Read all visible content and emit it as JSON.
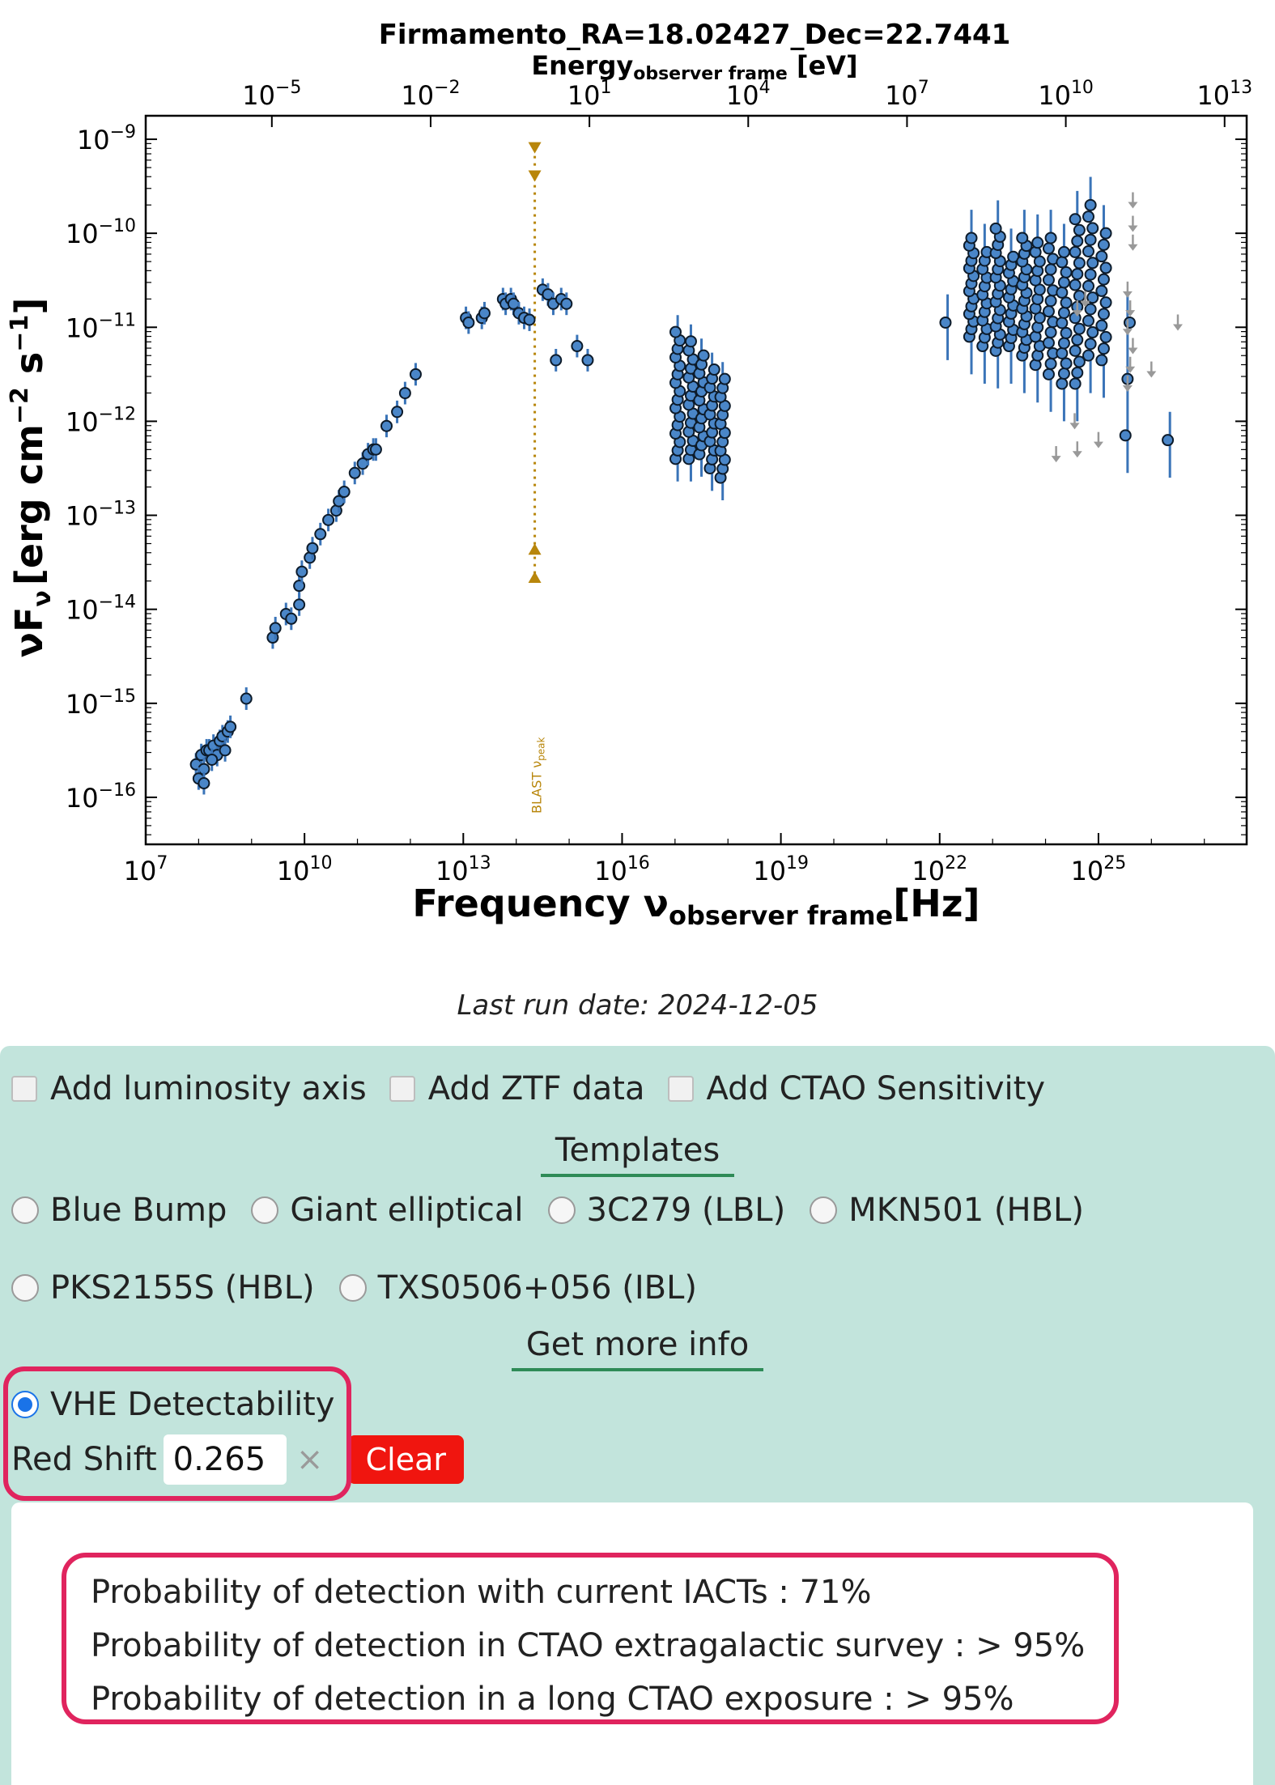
{
  "chart_data": {
    "type": "scatter",
    "title": "Firmamento_RA=18.02427_Dec=22.7441",
    "xlabel_main": "Frequency ν",
    "xlabel_sub": "observer frame",
    "xlabel_unit": "[Hz]",
    "ylabel_main": "νF",
    "ylabel_sub": "ν",
    "ylabel_unit": "[erg cm",
    "ylabel_unit_exp1": "−2",
    "ylabel_unit_mid": " s",
    "ylabel_unit_exp2": "−1",
    "ylabel_unit_end": "]",
    "top_xlabel_main": "Energy",
    "top_xlabel_sub": "observer frame",
    "top_xlabel_unit": " [eV]",
    "x_scale": "log",
    "y_scale": "log",
    "xlim_log10": [
      7,
      27.8
    ],
    "ylim_log10": [
      -16.5,
      -8.75
    ],
    "x_ticks": [
      {
        "exp": 7,
        "label": "10",
        "sup": "7"
      },
      {
        "exp": 10,
        "label": "10",
        "sup": "10"
      },
      {
        "exp": 13,
        "label": "10",
        "sup": "13"
      },
      {
        "exp": 16,
        "label": "10",
        "sup": "16"
      },
      {
        "exp": 19,
        "label": "10",
        "sup": "19"
      },
      {
        "exp": 22,
        "label": "10",
        "sup": "22"
      },
      {
        "exp": 25,
        "label": "10",
        "sup": "25"
      }
    ],
    "y_ticks": [
      {
        "exp": -9,
        "label": "10",
        "sup": "−9"
      },
      {
        "exp": -10,
        "label": "10",
        "sup": "−10"
      },
      {
        "exp": -11,
        "label": "10",
        "sup": "−11"
      },
      {
        "exp": -12,
        "label": "10",
        "sup": "−12"
      },
      {
        "exp": -13,
        "label": "10",
        "sup": "−13"
      },
      {
        "exp": -14,
        "label": "10",
        "sup": "−14"
      },
      {
        "exp": -15,
        "label": "10",
        "sup": "−15"
      },
      {
        "exp": -16,
        "label": "10",
        "sup": "−16"
      }
    ],
    "top_ticks": [
      {
        "exp": -5,
        "label": "10",
        "sup": "−5"
      },
      {
        "exp": -2,
        "label": "10",
        "sup": "−2"
      },
      {
        "exp": 1,
        "label": "10",
        "sup": "1"
      },
      {
        "exp": 4,
        "label": "10",
        "sup": "4"
      },
      {
        "exp": 7,
        "label": "10",
        "sup": "7"
      },
      {
        "exp": 10,
        "label": "10",
        "sup": "10"
      },
      {
        "exp": 13,
        "label": "10",
        "sup": "13"
      }
    ],
    "peak_marker": {
      "label": "BLAST ν",
      "label_sub": "peak",
      "log_nu": 14.35,
      "upper_log_flux": [
        -9.1,
        -9.4
      ],
      "lower_log_flux": [
        -13.35,
        -13.65
      ],
      "color": "#b8860b"
    },
    "colors": {
      "points": "#4a86c8",
      "point_edge": "#0d1b2a",
      "errorbar": "#3a74b8",
      "upper_limits": "#999999"
    },
    "series": [
      {
        "name": "",
        "points_log": [
          [
            7.95,
            -15.65
          ],
          [
            8.05,
            -15.55
          ],
          [
            8.1,
            -15.7
          ],
          [
            8.15,
            -15.5
          ],
          [
            8.2,
            -15.5
          ],
          [
            8.28,
            -15.45
          ],
          [
            8.35,
            -15.55
          ],
          [
            8.4,
            -15.4
          ],
          [
            8.45,
            -15.35
          ],
          [
            8.5,
            -15.5
          ],
          [
            8.55,
            -15.3
          ],
          [
            8.6,
            -15.25
          ],
          [
            8.0,
            -15.8
          ],
          [
            8.1,
            -15.85
          ],
          [
            8.25,
            -15.6
          ],
          [
            8.9,
            -14.95
          ],
          [
            9.4,
            -14.3
          ],
          [
            9.45,
            -14.2
          ],
          [
            9.65,
            -14.05
          ],
          [
            9.75,
            -14.1
          ],
          [
            9.9,
            -13.95
          ],
          [
            9.9,
            -13.75
          ],
          [
            9.95,
            -13.6
          ],
          [
            10.1,
            -13.45
          ],
          [
            10.15,
            -13.35
          ],
          [
            10.3,
            -13.2
          ],
          [
            10.45,
            -13.05
          ],
          [
            10.6,
            -12.95
          ],
          [
            10.65,
            -12.85
          ],
          [
            10.75,
            -12.75
          ],
          [
            10.95,
            -12.55
          ],
          [
            11.1,
            -12.45
          ],
          [
            11.2,
            -12.35
          ],
          [
            11.3,
            -12.3
          ],
          [
            11.35,
            -12.3
          ],
          [
            11.55,
            -12.05
          ],
          [
            11.75,
            -11.9
          ],
          [
            11.9,
            -11.7
          ],
          [
            12.1,
            -11.5
          ],
          [
            13.05,
            -10.9
          ],
          [
            13.1,
            -10.95
          ],
          [
            13.35,
            -10.9
          ],
          [
            13.4,
            -10.85
          ],
          [
            13.75,
            -10.7
          ],
          [
            13.8,
            -10.75
          ],
          [
            13.9,
            -10.7
          ],
          [
            13.95,
            -10.75
          ],
          [
            14.05,
            -10.85
          ],
          [
            14.15,
            -10.9
          ],
          [
            14.25,
            -10.92
          ],
          [
            14.5,
            -10.6
          ],
          [
            14.6,
            -10.65
          ],
          [
            14.7,
            -10.75
          ],
          [
            14.85,
            -10.7
          ],
          [
            14.95,
            -10.75
          ],
          [
            14.75,
            -11.35
          ],
          [
            15.15,
            -11.2
          ],
          [
            15.35,
            -11.35
          ]
        ],
        "xray_columns": [
          {
            "log_nu": 17.05,
            "low": -12.4,
            "high": -11.05,
            "n": 16
          },
          {
            "log_nu": 17.3,
            "low": -12.4,
            "high": -11.15,
            "n": 14
          },
          {
            "log_nu": 17.5,
            "low": -12.35,
            "high": -11.3,
            "n": 12
          },
          {
            "log_nu": 17.7,
            "low": -12.5,
            "high": -11.45,
            "n": 12
          },
          {
            "log_nu": 17.9,
            "low": -12.6,
            "high": -11.55,
            "n": 12
          }
        ],
        "gamma_columns": [
          {
            "log_nu": 22.15,
            "low": -10.95,
            "high": -10.95,
            "n": 1
          },
          {
            "log_nu": 22.6,
            "low": -11.1,
            "high": -10.05,
            "n": 14
          },
          {
            "log_nu": 22.85,
            "low": -11.2,
            "high": -10.2,
            "n": 12
          },
          {
            "log_nu": 23.1,
            "low": -11.25,
            "high": -9.95,
            "n": 16
          },
          {
            "log_nu": 23.35,
            "low": -11.2,
            "high": -10.25,
            "n": 12
          },
          {
            "log_nu": 23.6,
            "low": -11.3,
            "high": -10.05,
            "n": 16
          },
          {
            "log_nu": 23.85,
            "low": -11.4,
            "high": -10.1,
            "n": 14
          },
          {
            "log_nu": 24.1,
            "low": -11.5,
            "high": -10.05,
            "n": 14
          },
          {
            "log_nu": 24.35,
            "low": -11.6,
            "high": -10.2,
            "n": 14
          },
          {
            "log_nu": 24.6,
            "low": -11.6,
            "high": -9.85,
            "n": 16
          },
          {
            "log_nu": 24.85,
            "low": -11.3,
            "high": -9.7,
            "n": 14
          },
          {
            "log_nu": 25.1,
            "low": -11.35,
            "high": -10.0,
            "n": 12
          },
          {
            "log_nu": 25.55,
            "low": -12.15,
            "high": -10.95,
            "n": 3
          },
          {
            "log_nu": 26.35,
            "low": -12.2,
            "high": -12.2,
            "n": 1
          }
        ],
        "upper_limits_log": [
          [
            25.65,
            -9.65
          ],
          [
            25.65,
            -9.9
          ],
          [
            25.65,
            -10.1
          ],
          [
            25.55,
            -10.6
          ],
          [
            25.6,
            -10.8
          ],
          [
            25.55,
            -11.0
          ],
          [
            25.65,
            -11.2
          ],
          [
            25.6,
            -11.4
          ],
          [
            25.55,
            -11.6
          ],
          [
            26.0,
            -11.45
          ],
          [
            26.5,
            -10.95
          ],
          [
            25.0,
            -12.2
          ],
          [
            24.55,
            -12.0
          ],
          [
            24.6,
            -12.3
          ],
          [
            24.2,
            -12.35
          ],
          [
            24.75,
            -10.7
          ],
          [
            24.6,
            -10.8
          ]
        ]
      }
    ]
  },
  "run_date": "Last run date: 2024-12-05",
  "options": {
    "add_luminosity_axis": "Add luminosity axis",
    "add_ztf_data": "Add ZTF data",
    "add_ctao_sensitivity": "Add CTAO Sensitivity"
  },
  "templates": {
    "title": "Templates",
    "items": [
      "Blue Bump",
      "Giant elliptical",
      "3C279 (LBL)",
      "MKN501 (HBL)",
      "PKS2155S (HBL)",
      "TXS0506+056 (IBL)"
    ]
  },
  "more_info": {
    "title": "Get more info",
    "vhe_label": "VHE Detectability",
    "redshift_label": "Red Shift",
    "redshift_value": "0.265",
    "clear_x": "×",
    "clear_button": "Clear"
  },
  "results": {
    "line1": "Probability of detection with current IACTs : 71%",
    "line2": "Probability of detection in CTAO extragalactic survey : > 95%",
    "line3": "Probability of detection in a long CTAO exposure : > 95%"
  }
}
